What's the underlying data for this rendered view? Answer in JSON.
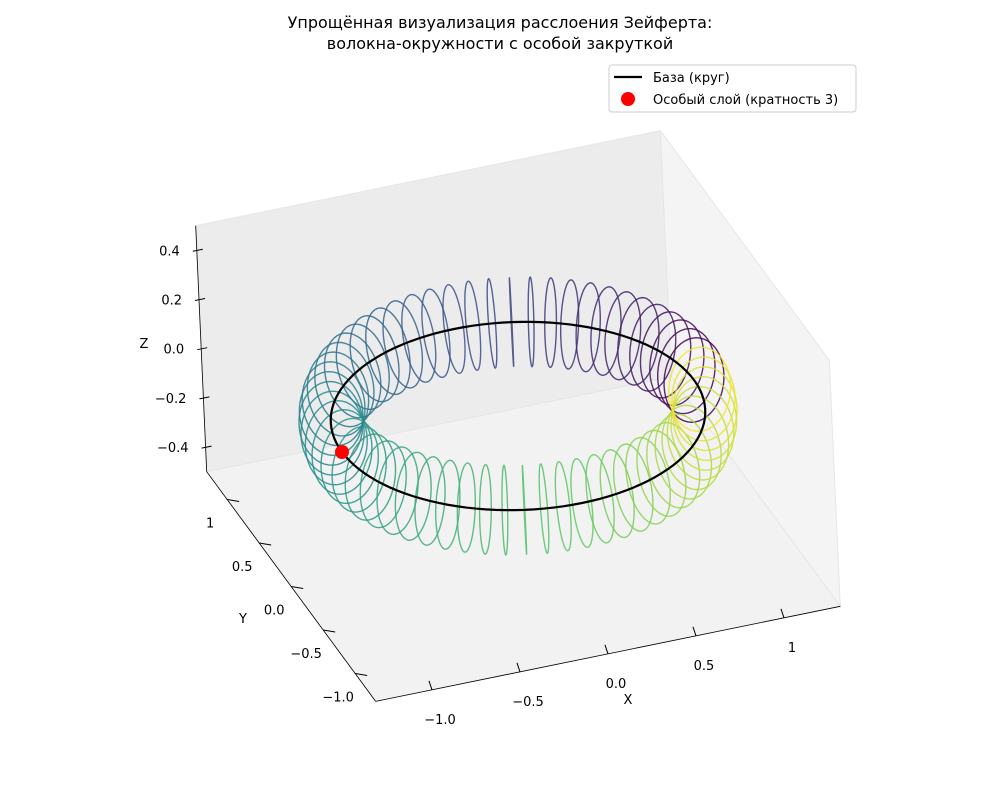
{
  "chart_data": {
    "type": "fibration3d",
    "title": "Упрощённая визуализация расслоения Зейферта:\nволокна-окружности с особой закруткой",
    "xlabel": "X",
    "ylabel": "Y",
    "zlabel": "Z",
    "xlim": [
      -1.32,
      1.32
    ],
    "ylim": [
      -1.32,
      1.32
    ],
    "zlim": [
      -0.5,
      0.5
    ],
    "xticks": [
      {
        "value": -1,
        "label": "−1.0"
      },
      {
        "value": -0.5,
        "label": "−0.5"
      },
      {
        "value": 0,
        "label": "0.0"
      },
      0.5,
      1.0
    ],
    "yticks": [
      {
        "value": -1,
        "label": "−1.0"
      },
      {
        "value": -0.5,
        "label": "−0.5"
      },
      {
        "value": 0,
        "label": "0.0"
      },
      0.5,
      1.0
    ],
    "zticks": [
      {
        "value": -0.4,
        "label": "−0.4"
      },
      {
        "value": -0.2,
        "label": "−0.2"
      },
      {
        "value": 0,
        "label": "0.0"
      },
      0.2,
      0.4
    ],
    "fibers": {
      "count": 60,
      "radius": 0.17,
      "colormap": [
        "#440154",
        "#3b528b",
        "#21918c",
        "#5ec962",
        "#fde725"
      ]
    },
    "series": [
      {
        "name": "База (круг)",
        "color": "#000000",
        "radius": 1
      },
      {
        "name": "Особый слой (кратность 3)",
        "color": "#ff0000",
        "x": -1,
        "y": 0,
        "z": 0
      }
    ],
    "legend": "upper right"
  }
}
